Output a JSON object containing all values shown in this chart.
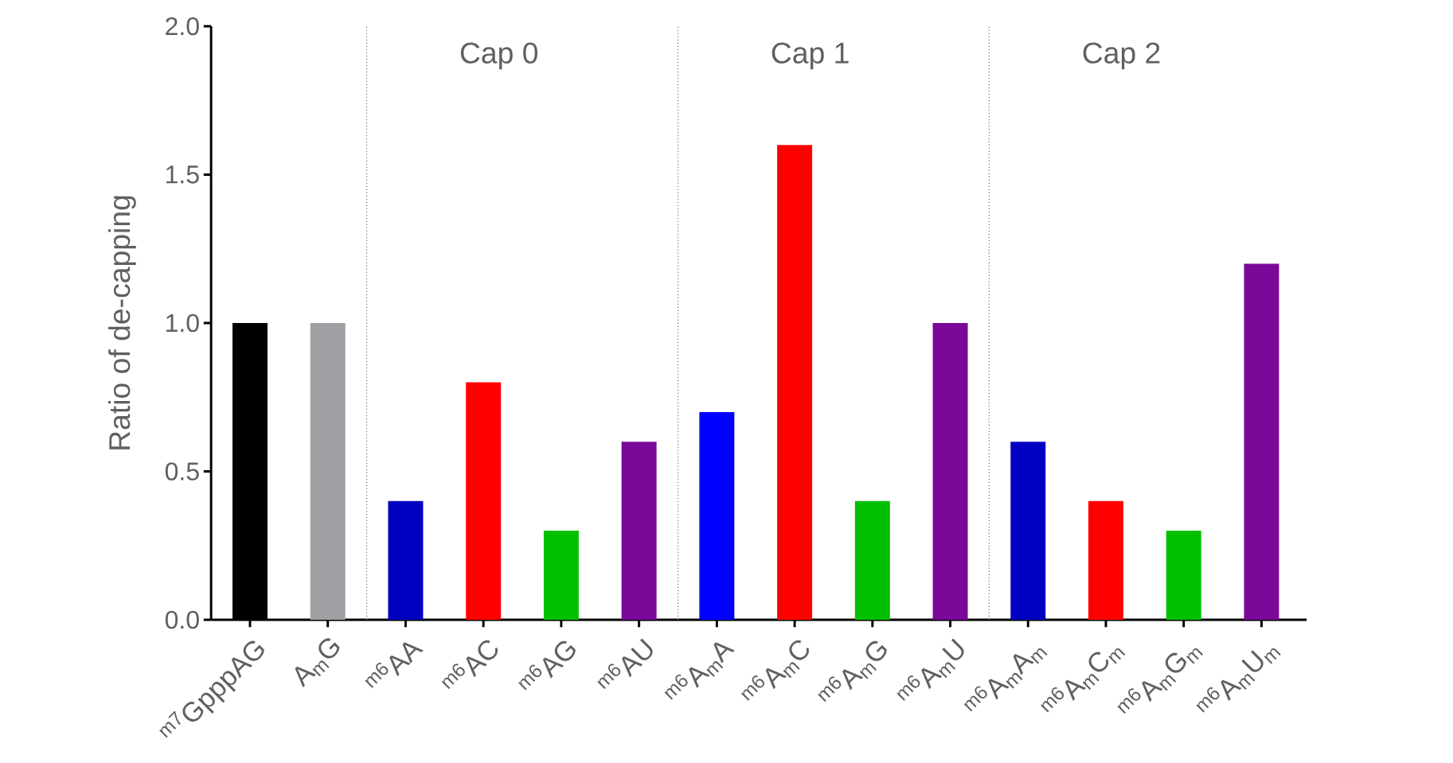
{
  "chart_data": {
    "type": "bar",
    "ylabel": "Ratio of de-capping",
    "categories": [
      "$^{m7}$GpppAG",
      "A$_{m}$G",
      "$^{m6}$AA",
      "$^{m6}$AC",
      "$^{m6}$AG",
      "$^{m6}$AU",
      "$^{m6}$A$_{m}$A",
      "$^{m6}$A$_{m}$C",
      "$^{m6}$A$_{m}$G",
      "$^{m6}$A$_{m}$U",
      "$^{m6}$A$_{m}$A$_{m}$",
      "$^{m6}$A$_{m}$C$_{m}$",
      "$^{m6}$A$_{m}$G$_{m}$",
      "$^{m6}$A$_{m}$U$_{m}$"
    ],
    "values": [
      1.0,
      1.0,
      0.4,
      0.8,
      0.3,
      0.6,
      0.7,
      1.6,
      0.4,
      1.0,
      0.6,
      0.4,
      0.3,
      1.2
    ],
    "colors": [
      "#000000",
      "#a0a0a4",
      "#0000c0",
      "#ff0000",
      "#00c000",
      "#7a0899",
      "#0000ff",
      "#ff0000",
      "#00c000",
      "#7a0899",
      "#0000c0",
      "#ff0000",
      "#00c000",
      "#7a0899"
    ],
    "ylim": [
      0,
      2.0
    ],
    "yticks": [
      {
        "value": 0,
        "label": "0.0"
      },
      {
        "value": 0.5,
        "label": "0.5"
      },
      {
        "value": 1.0,
        "label": "1.0"
      },
      {
        "value": 1.5,
        "label": "1.5"
      },
      {
        "value": 2.0,
        "label": "2.0"
      }
    ],
    "annotations": [
      "Cap 0",
      "Cap 1",
      "Cap 2"
    ],
    "grid": false
  }
}
